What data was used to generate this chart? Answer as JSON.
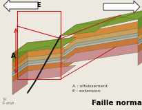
{
  "bg_color": "#ede8e0",
  "title": "Faille normale",
  "title_fontsize": 7.5,
  "label_A": "A : affaissement",
  "label_E": "E : extension",
  "label_fontsize": 4.5,
  "watermark": "1a\n© IPGP",
  "watermark_fontsize": 3.5,
  "arrow_color": "#444444",
  "fault_color": "#1a1a1a",
  "red_color": "#cc1111",
  "layer_colors": {
    "green_top": "#7a9e35",
    "orange_upper": "#d4893a",
    "tan_mid": "#c8a060",
    "gray_stripe1": "#a0a898",
    "gray_stripe2": "#b8b8b0",
    "orange_lower": "#c8783a",
    "pink_base": "#c89090"
  },
  "layer_colors_dark": {
    "green_top": "#5a7e20",
    "orange_upper": "#b06820",
    "tan_mid": "#a88040",
    "gray_stripe1": "#808878",
    "gray_stripe2": "#989890",
    "orange_lower": "#a85820",
    "pink_base": "#a87070"
  },
  "layer_colors_side": {
    "green_top": "#6a8e28",
    "orange_upper": "#c07828",
    "tan_mid": "#b89050",
    "gray_stripe1": "#909888",
    "gray_stripe2": "#a8a8a0",
    "orange_lower": "#b86828",
    "pink_base": "#b88080"
  }
}
